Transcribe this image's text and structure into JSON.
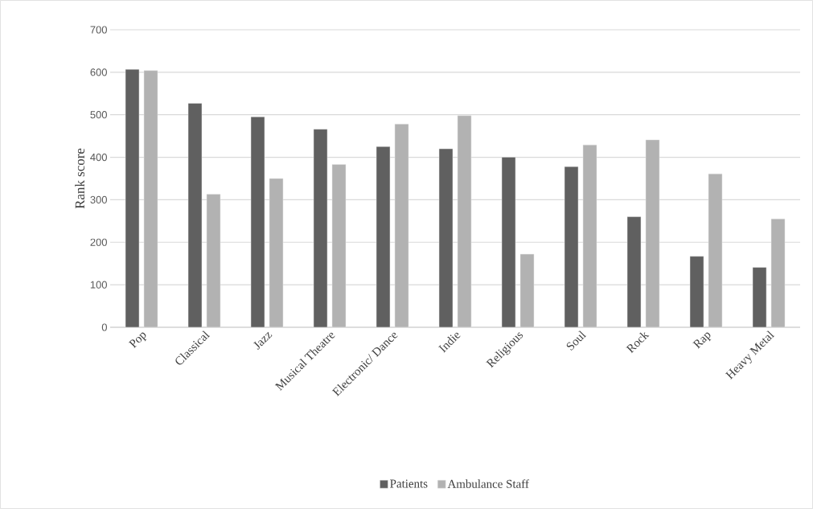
{
  "chart_data": {
    "type": "bar",
    "ylabel": "Rank score",
    "categories": [
      "Pop",
      "Classical",
      "Jazz",
      "Musical Theatre",
      "Electronic/ Dance",
      "Indie",
      "Religious",
      "Soul",
      "Rock",
      "Rap",
      "Heavy Metal"
    ],
    "series": [
      {
        "name": "Patients",
        "color": "#606060",
        "values": [
          607,
          527,
          495,
          466,
          425,
          420,
          400,
          378,
          260,
          167,
          141
        ]
      },
      {
        "name": "Ambulance Staff",
        "color": "#b2b2b2",
        "values": [
          604,
          313,
          350,
          383,
          478,
          498,
          172,
          429,
          441,
          361,
          255
        ]
      }
    ],
    "ylim": [
      0,
      700
    ],
    "yticks": [
      0,
      100,
      200,
      300,
      400,
      500,
      600,
      700
    ],
    "grid": "y",
    "legend": "bottom"
  }
}
